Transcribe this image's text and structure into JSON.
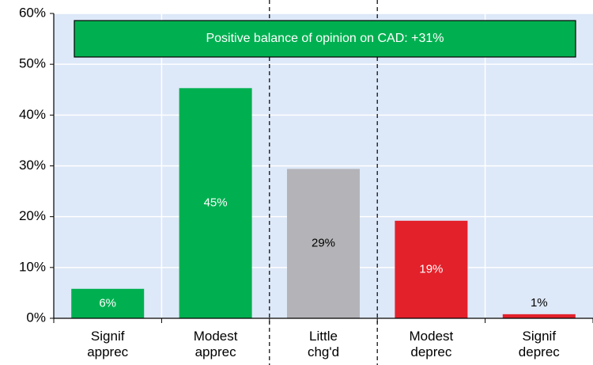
{
  "chart_data": {
    "type": "bar",
    "annotation": "Positive balance of opinion on CAD: +31%",
    "categories": [
      "Signif apprec",
      "Modest apprec",
      "Little chg'd",
      "Modest deprec",
      "Signif deprec"
    ],
    "values": [
      5.8,
      45.3,
      29.4,
      19.2,
      0.8
    ],
    "value_labels": [
      "6%",
      "45%",
      "29%",
      "19%",
      "1%"
    ],
    "colors": [
      "#00b050",
      "#00b050",
      "#b4b4b8",
      "#e3212b",
      "#e3212b"
    ],
    "ylim": [
      0,
      60
    ],
    "yticks": [
      {
        "value": 0,
        "label": "0%"
      },
      {
        "value": 10,
        "label": "10%"
      },
      {
        "value": 20,
        "label": "20%"
      },
      {
        "value": 30,
        "label": "30%"
      },
      {
        "value": 40,
        "label": "40%"
      },
      {
        "value": 50,
        "label": "50%"
      },
      {
        "value": 60,
        "label": "60%"
      }
    ],
    "grid": true
  }
}
